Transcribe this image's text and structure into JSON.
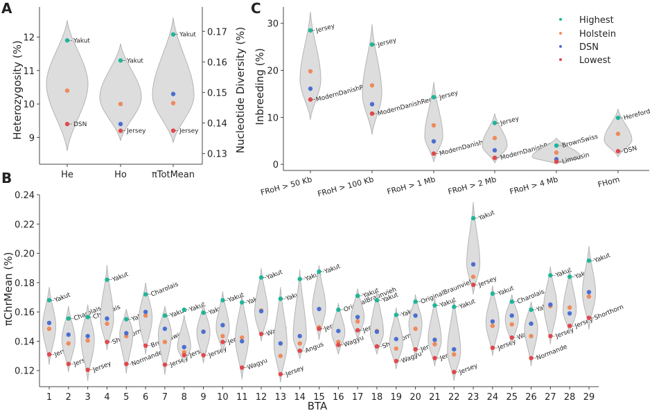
{
  "colors": {
    "highest": "#1fb59a",
    "holstein": "#ef8a5c",
    "dsn": "#4a6fd0",
    "lowest": "#e2484b",
    "violin_fill": "#dddddd",
    "violin_stroke": "#b4b4b4",
    "axis": "#444444"
  },
  "panels": {
    "A": {
      "letter": "A",
      "ylabel_left": "Heterozygosity (%)",
      "ylabel_right": "Nucleotide Diversity (%)"
    },
    "B": {
      "letter": "B",
      "ylabel": "πChrMean (%)",
      "xlabel": "BTA"
    },
    "C": {
      "letter": "C",
      "ylabel": "Inbreeding (%)"
    }
  },
  "legend": {
    "highest": "Highest",
    "holstein": "Holstein",
    "dsn": "DSN",
    "lowest": "Lowest"
  },
  "chart_data": [
    {
      "id": "A",
      "type": "violin",
      "title": "",
      "y_left": {
        "label": "Heterozygosity (%)",
        "range": [
          8.2,
          12.9
        ],
        "ticks": [
          "9",
          "10",
          "11",
          "12"
        ]
      },
      "y_right": {
        "label": "Nucleotide Diversity (%)",
        "range": [
          0.1265,
          0.178
        ],
        "ticks": [
          "0.13",
          "0.14",
          "0.15",
          "0.16",
          "0.17"
        ]
      },
      "categories": [
        {
          "label": "He",
          "axis": "left",
          "violin": [
            8.6,
            12.5,
            10.6
          ],
          "highest": 11.9,
          "holstein": 10.4,
          "dsn": null,
          "lowest": 9.4,
          "high_name": "Yakut",
          "low_name": "DSN"
        },
        {
          "label": "Ho",
          "axis": "left",
          "violin": [
            8.9,
            11.8,
            10.2
          ],
          "highest": 11.3,
          "holstein": 10.0,
          "dsn": 9.4,
          "lowest": 9.2,
          "high_name": "Yakut",
          "low_name": "Jersey"
        },
        {
          "label": "πTotMean",
          "axis": "right",
          "violin": [
            0.1335,
            0.1745,
            0.149
          ],
          "highest": 0.169,
          "holstein": 0.1465,
          "dsn": 0.1495,
          "lowest": 0.1375,
          "high_name": "Yakut",
          "low_name": "Jersey"
        }
      ]
    },
    {
      "id": "B",
      "type": "violin",
      "title": "",
      "xlabel": "BTA",
      "ylabel": "πChrMean (%)",
      "ylim": [
        0.109,
        0.24
      ],
      "yticks": [
        "0.12",
        "0.14",
        "0.16",
        "0.18",
        "0.20",
        "0.22",
        "0.24"
      ],
      "categories": [
        {
          "label": "1",
          "highest": 0.168,
          "holstein": 0.1485,
          "dsn": 0.1525,
          "lowest": 0.131,
          "high_name": "Yakut",
          "low_name": "Jersey",
          "violin": [
            0.124,
            0.177,
            0.15
          ]
        },
        {
          "label": "2",
          "highest": 0.1555,
          "holstein": 0.1385,
          "dsn": 0.1445,
          "lowest": 0.1245,
          "high_name": "Charolais",
          "low_name": "Jersey",
          "violin": [
            0.119,
            0.164,
            0.141
          ]
        },
        {
          "label": "3",
          "highest": 0.1565,
          "holstein": 0.1405,
          "dsn": 0.1435,
          "lowest": 0.1205,
          "high_name": "Charolais",
          "low_name": "Jersey",
          "violin": [
            0.113,
            0.165,
            0.141
          ]
        },
        {
          "label": "4",
          "highest": 0.182,
          "holstein": 0.152,
          "dsn": 0.1555,
          "lowest": 0.1395,
          "high_name": "Yakut",
          "low_name": "Shorthorn",
          "violin": [
            0.134,
            0.192,
            0.155
          ]
        },
        {
          "label": "5",
          "highest": 0.155,
          "holstein": 0.1435,
          "dsn": 0.1455,
          "lowest": 0.1245,
          "high_name": "Yakut",
          "low_name": "Normande",
          "violin": [
            0.118,
            0.162,
            0.145
          ]
        },
        {
          "label": "6",
          "highest": 0.172,
          "holstein": 0.1575,
          "dsn": 0.16,
          "lowest": 0.137,
          "high_name": "Charolais",
          "low_name": "BrownSwiss",
          "violin": [
            0.131,
            0.18,
            0.156
          ]
        },
        {
          "label": "7",
          "highest": 0.1575,
          "holstein": 0.1395,
          "dsn": 0.1485,
          "lowest": 0.124,
          "high_name": "Yakut",
          "low_name": "Jersey",
          "violin": [
            0.117,
            0.164,
            0.145
          ]
        },
        {
          "label": "8",
          "highest": 0.1615,
          "holstein": 0.1325,
          "dsn": 0.136,
          "lowest": 0.1305,
          "high_name": "Yakut",
          "low_name": "Jersey",
          "violin": [
            0.125,
            0.158,
            0.136
          ]
        },
        {
          "label": "9",
          "highest": 0.1595,
          "holstein": 0.1465,
          "dsn": 0.1465,
          "lowest": 0.1305,
          "high_name": "Yakut",
          "low_name": "Jersey",
          "violin": [
            0.125,
            0.166,
            0.146
          ]
        },
        {
          "label": "10",
          "highest": 0.168,
          "holstein": 0.1435,
          "dsn": 0.151,
          "lowest": 0.1395,
          "high_name": "Yakut",
          "low_name": "Jersey",
          "violin": [
            0.132,
            0.174,
            0.149
          ]
        },
        {
          "label": "11",
          "highest": 0.1665,
          "holstein": 0.1425,
          "dsn": 0.14,
          "lowest": 0.122,
          "high_name": "Yakut",
          "low_name": "Wagyu",
          "violin": [
            0.114,
            0.172,
            0.142
          ]
        },
        {
          "label": "12",
          "highest": 0.1835,
          "holstein": 0.161,
          "dsn": 0.1605,
          "lowest": 0.145,
          "high_name": "Yakut",
          "low_name": "Wagyu",
          "violin": [
            0.14,
            0.19,
            0.16
          ]
        },
        {
          "label": "13",
          "highest": 0.169,
          "holstein": 0.13,
          "dsn": 0.1385,
          "lowest": 0.1175,
          "high_name": "Yakut",
          "low_name": "Jersey",
          "violin": [
            0.112,
            0.177,
            0.138
          ]
        },
        {
          "label": "14",
          "highest": 0.1825,
          "holstein": 0.1385,
          "dsn": 0.1435,
          "lowest": 0.1335,
          "high_name": "Yakut",
          "low_name": "Angus",
          "violin": [
            0.128,
            0.189,
            0.143
          ]
        },
        {
          "label": "15",
          "highest": 0.1875,
          "holstein": 0.1495,
          "dsn": 0.162,
          "lowest": 0.1485,
          "high_name": "Yakut",
          "low_name": "Jersey",
          "violin": [
            0.141,
            0.192,
            0.163
          ]
        },
        {
          "label": "16",
          "highest": 0.1615,
          "holstein": 0.1395,
          "dsn": 0.147,
          "lowest": 0.1375,
          "high_name": "OriginalBraunvieh",
          "low_name": "Wagyu",
          "violin": [
            0.131,
            0.166,
            0.146
          ]
        },
        {
          "label": "17",
          "highest": 0.171,
          "holstein": 0.1535,
          "dsn": 0.1565,
          "lowest": 0.1475,
          "high_name": "Yakut",
          "low_name": "Jersey",
          "violin": [
            0.141,
            0.176,
            0.156
          ]
        },
        {
          "label": "18",
          "highest": 0.168,
          "holstein": 0.147,
          "dsn": 0.1465,
          "lowest": 0.1365,
          "high_name": "Yakut",
          "low_name": "Shorthorn",
          "violin": [
            0.131,
            0.175,
            0.146
          ]
        },
        {
          "label": "19",
          "highest": 0.158,
          "holstein": 0.135,
          "dsn": 0.1415,
          "lowest": 0.1265,
          "high_name": "Yakut",
          "low_name": "Wagyu",
          "violin": [
            0.121,
            0.163,
            0.139
          ]
        },
        {
          "label": "20",
          "highest": 0.167,
          "holstein": 0.1485,
          "dsn": 0.1575,
          "lowest": 0.1345,
          "high_name": "OriginalBraunvieh",
          "low_name": "Jersey",
          "violin": [
            0.128,
            0.172,
            0.152
          ]
        },
        {
          "label": "21",
          "highest": 0.1645,
          "holstein": 0.138,
          "dsn": 0.141,
          "lowest": 0.1285,
          "high_name": "Yakut",
          "low_name": "Jersey",
          "violin": [
            0.123,
            0.17,
            0.141
          ]
        },
        {
          "label": "22",
          "highest": 0.1635,
          "holstein": 0.131,
          "dsn": 0.1345,
          "lowest": 0.119,
          "high_name": "Yakut",
          "low_name": "Jersey",
          "violin": [
            0.113,
            0.17,
            0.133
          ]
        },
        {
          "label": "23",
          "highest": 0.224,
          "holstein": 0.184,
          "dsn": 0.1925,
          "lowest": 0.1785,
          "high_name": "Yakut",
          "low_name": "Jersey",
          "violin": [
            0.172,
            0.235,
            0.193
          ]
        },
        {
          "label": "24",
          "highest": 0.1725,
          "holstein": 0.1505,
          "dsn": 0.1535,
          "lowest": 0.1355,
          "high_name": "Yakut",
          "low_name": "Jersey",
          "violin": [
            0.13,
            0.178,
            0.153
          ]
        },
        {
          "label": "25",
          "highest": 0.167,
          "holstein": 0.1515,
          "dsn": 0.1575,
          "lowest": 0.1425,
          "high_name": "Charolais",
          "low_name": "Wagyu",
          "violin": [
            0.137,
            0.172,
            0.155
          ]
        },
        {
          "label": "26",
          "highest": 0.1615,
          "holstein": 0.1435,
          "dsn": 0.152,
          "lowest": 0.1285,
          "high_name": "Yakut",
          "low_name": "Normande",
          "violin": [
            0.123,
            0.167,
            0.149
          ]
        },
        {
          "label": "27",
          "highest": 0.185,
          "holstein": 0.164,
          "dsn": 0.165,
          "lowest": 0.1435,
          "high_name": "Yakut",
          "low_name": "Jersey",
          "violin": [
            0.138,
            0.191,
            0.164
          ]
        },
        {
          "label": "28",
          "highest": 0.184,
          "holstein": 0.163,
          "dsn": 0.159,
          "lowest": 0.1505,
          "high_name": "Yakut",
          "low_name": "Jersey",
          "violin": [
            0.145,
            0.19,
            0.161
          ]
        },
        {
          "label": "29",
          "highest": 0.195,
          "holstein": 0.1705,
          "dsn": 0.1735,
          "lowest": 0.156,
          "high_name": "Yakut",
          "low_name": "Shorthorn",
          "violin": [
            0.148,
            0.205,
            0.173
          ]
        }
      ]
    },
    {
      "id": "C",
      "type": "violin",
      "title": "",
      "ylabel": "Inbreeding (%)",
      "ylim": [
        -1.3,
        33.5
      ],
      "yticks": [
        "0",
        "10",
        "20",
        "30"
      ],
      "categories": [
        {
          "label": "FRoH > 50 Kb",
          "highest": 28.5,
          "holstein": 19.8,
          "dsn": 16.1,
          "lowest": 13.8,
          "high_name": "Jersey",
          "low_name": "ModernDanishRed",
          "violin": [
            9.5,
            32.5,
            18
          ]
        },
        {
          "label": "FRoH > 100 Kb",
          "highest": 25.5,
          "holstein": 16.8,
          "dsn": 12.8,
          "lowest": 10.8,
          "high_name": "Jersey",
          "low_name": "ModernDanishRed",
          "violin": [
            6.3,
            29.8,
            15
          ]
        },
        {
          "label": "FRoH > 1 Mb",
          "highest": 14.3,
          "holstein": 8.3,
          "dsn": 4.9,
          "lowest": 2.3,
          "high_name": "Jersey",
          "low_name": "ModernDanishRed",
          "violin": [
            0.5,
            17.5,
            6
          ]
        },
        {
          "label": "FRoH > 2 Mb",
          "highest": 8.8,
          "holstein": 5.6,
          "dsn": 3.0,
          "lowest": 1.4,
          "high_name": "Jersey",
          "low_name": "ModernDanishRed",
          "violin": [
            0.3,
            10.8,
            4
          ]
        },
        {
          "label": "FRoH > 4 Mb",
          "highest": 4.0,
          "holstein": 2.5,
          "dsn": 1.1,
          "lowest": 0.6,
          "high_name": "BrownSwiss",
          "low_name": "Limousin",
          "violin": [
            0.1,
            5.6,
            1.6
          ]
        },
        {
          "label": "FHom",
          "highest": 9.9,
          "holstein": 6.5,
          "dsn": null,
          "lowest": 2.8,
          "high_name": "Hereford",
          "low_name": "DSN",
          "violin": [
            1.6,
            11.8,
            5.2
          ]
        }
      ]
    }
  ]
}
